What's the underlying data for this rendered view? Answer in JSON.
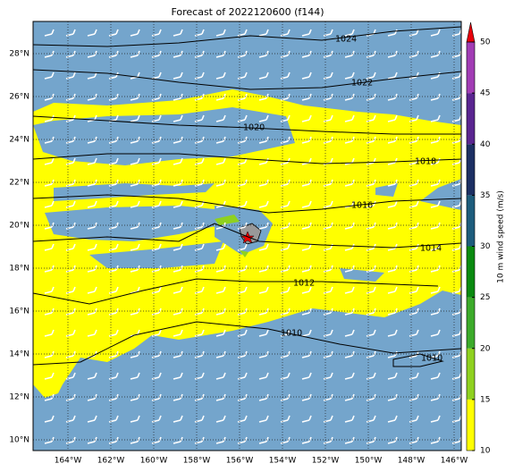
{
  "title": "Forecast of 2022120600 (f144)",
  "lon_labels": [
    "164°W",
    "162°W",
    "160°W",
    "158°W",
    "156°W",
    "154°W",
    "152°W",
    "150°W",
    "148°W",
    "146°W"
  ],
  "lat_labels": [
    "28°N",
    "26°N",
    "24°N",
    "22°N",
    "20°N",
    "18°N",
    "16°N",
    "14°N",
    "12°N",
    "10°N"
  ],
  "isobar_labels": [
    "1024",
    "1022",
    "1020",
    "1018",
    "1016",
    "1014",
    "1012",
    "1010",
    "1010"
  ],
  "colorbar": {
    "label": "10 m wind speed (m/s)",
    "lim": [
      10,
      50
    ],
    "ticks": [
      10,
      15,
      20,
      25,
      30,
      35,
      40,
      45,
      50
    ],
    "colors": [
      "#ffff00",
      "#8fd11f",
      "#3caa2a",
      "#0a8a10",
      "#1d5c7c",
      "#1c2f63",
      "#5a2590",
      "#a13cb4"
    ],
    "over_color": "#e8000b"
  }
}
